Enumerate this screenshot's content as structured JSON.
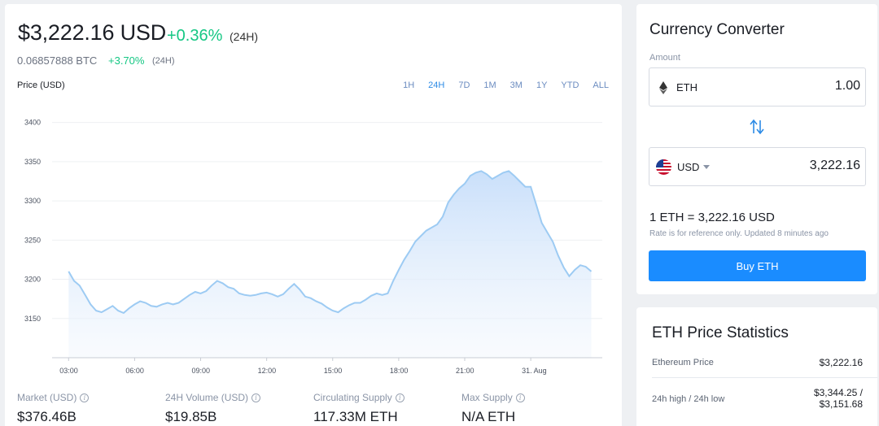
{
  "price": {
    "usd": "$3,222.16 USD",
    "change": "+0.36%",
    "period": "(24H)",
    "btc": "0.06857888 BTC",
    "btc_change": "+3.70%",
    "btc_period": "(24H)"
  },
  "chart_header": {
    "label": "Price (USD)",
    "ranges": [
      "1H",
      "24H",
      "7D",
      "1M",
      "3M",
      "1Y",
      "YTD",
      "ALL"
    ],
    "active_range": "24H"
  },
  "chart_data": {
    "type": "area",
    "ylabel": "Price (USD)",
    "y_ticks": [
      3150,
      3200,
      3250,
      3300,
      3350,
      3400
    ],
    "x_ticks": [
      "03:00",
      "06:00",
      "09:00",
      "12:00",
      "15:00",
      "18:00",
      "21:00",
      "31. Aug"
    ],
    "ylim": [
      3100,
      3410
    ],
    "x_hours": [
      0,
      0.5,
      1,
      1.5,
      2,
      2.5,
      3,
      3.5,
      4,
      4.5,
      5,
      5.5,
      6,
      6.5,
      7,
      7.5,
      8,
      8.5,
      9,
      9.5,
      10,
      10.5,
      11,
      11.5,
      12,
      12.5,
      13,
      13.5,
      14,
      14.5,
      15,
      15.5,
      16,
      16.5,
      17,
      17.5,
      18,
      18.5,
      19,
      19.5,
      20,
      20.5,
      21,
      21.5,
      22,
      22.5,
      23,
      23.5,
      24,
      24.5,
      25,
      25.5,
      26,
      26.5,
      27,
      27.5,
      28,
      28.5,
      29,
      29.5,
      30,
      30.5,
      31,
      31.5,
      32,
      32.5,
      33,
      33.5,
      34,
      34.5,
      35,
      35.5,
      36,
      36.5,
      37,
      37.5,
      38,
      38.5,
      39,
      39.5,
      40,
      40.5,
      41,
      41.5,
      42,
      42.5,
      43,
      43.5,
      44,
      44.5,
      45,
      45.5,
      46,
      46.5,
      47,
      47.5
    ],
    "x_hour_note": "",
    "values": [
      3210,
      3198,
      3192,
      3180,
      3168,
      3160,
      3158,
      3162,
      3166,
      3160,
      3157,
      3163,
      3168,
      3172,
      3170,
      3166,
      3165,
      3168,
      3170,
      3168,
      3170,
      3175,
      3180,
      3184,
      3182,
      3185,
      3192,
      3198,
      3195,
      3190,
      3188,
      3182,
      3180,
      3179,
      3180,
      3182,
      3183,
      3181,
      3178,
      3181,
      3188,
      3194,
      3187,
      3178,
      3176,
      3172,
      3169,
      3164,
      3160,
      3158,
      3163,
      3167,
      3170,
      3170,
      3174,
      3179,
      3182,
      3180,
      3182,
      3198,
      3212,
      3225,
      3236,
      3248,
      3255,
      3262,
      3266,
      3270,
      3280,
      3298,
      3308,
      3316,
      3322,
      3332,
      3336,
      3338,
      3334,
      3328,
      3332,
      3336,
      3338,
      3332,
      3325,
      3318,
      3318,
      3295,
      3272,
      3260,
      3248,
      3230,
      3215,
      3204,
      3212,
      3218,
      3216,
      3210
    ],
    "series_color": "#9dcbf3"
  },
  "stats_bottom": [
    {
      "label": "Market (USD)",
      "value": "$376.46B"
    },
    {
      "label": "24H Volume (USD)",
      "value": "$19.85B"
    },
    {
      "label": "Circulating Supply",
      "value": "117.33M ETH"
    },
    {
      "label": "Max Supply",
      "value": "N/A ETH"
    }
  ],
  "converter": {
    "title": "Currency Converter",
    "amount_label": "Amount",
    "from_currency": "ETH",
    "from_value": "1.00",
    "to_currency": "USD",
    "to_value": "3,222.16",
    "rate": "1 ETH = 3,222.16 USD",
    "rate_note": "Rate is for reference only. Updated 8 minutes ago",
    "buy_label": "Buy ETH",
    "accent_color": "#1a8cff",
    "icons": {
      "from": "eth-diamond-icon",
      "to": "us-flag-icon",
      "swap": "swap-arrows-icon",
      "caret": "caret-down-icon",
      "info": "info-icon"
    }
  },
  "price_statistics": {
    "title": "ETH Price Statistics",
    "rows": [
      {
        "label": "Ethereum Price",
        "value": "$3,222.16"
      },
      {
        "label": "24h high / 24h low",
        "value_line1": "$3,344.25 /",
        "value_line2": "$3,151.68"
      }
    ]
  }
}
